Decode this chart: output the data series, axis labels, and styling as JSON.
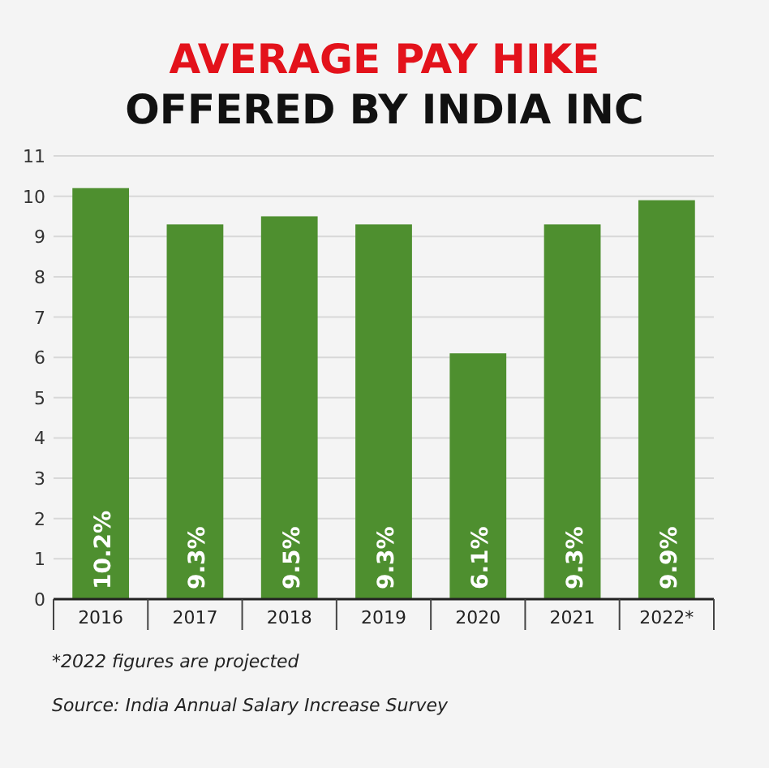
{
  "chart_data": {
    "type": "bar",
    "title": "AVERAGE PAY HIKE",
    "subtitle": "OFFERED BY INDIA INC",
    "categories": [
      "2016",
      "2017",
      "2018",
      "2019",
      "2020",
      "2021",
      "2022*"
    ],
    "values": [
      10.2,
      9.3,
      9.5,
      9.3,
      6.1,
      9.3,
      9.9
    ],
    "value_labels": [
      "10.2%",
      "9.3%",
      "9.5%",
      "9.3%",
      "6.1%",
      "9.3%",
      "9.9%"
    ],
    "color": "#4e8f2f",
    "ylim": [
      0,
      11
    ],
    "yticks": [
      0,
      1,
      2,
      3,
      4,
      5,
      6,
      7,
      8,
      9,
      10,
      11
    ],
    "grid": "y",
    "annotations": [
      "*2022 figures are projected",
      "Source: India Annual Salary Increase Survey"
    ]
  }
}
